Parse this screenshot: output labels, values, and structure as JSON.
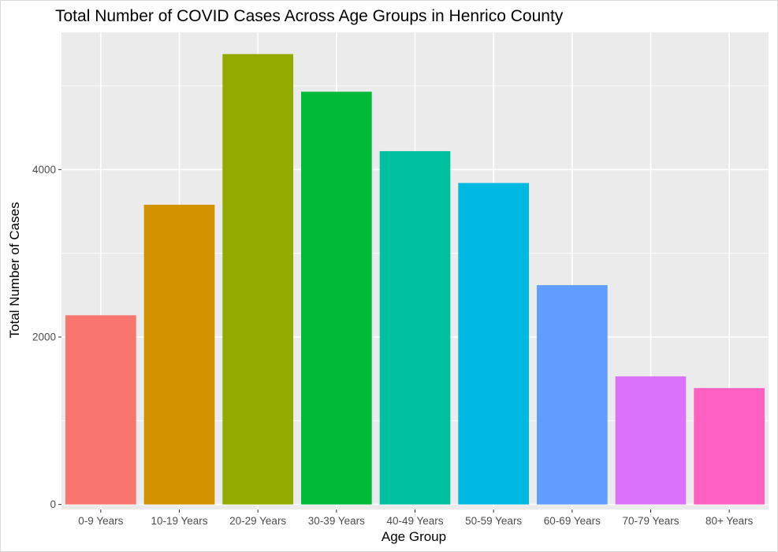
{
  "chart_data": {
    "type": "bar",
    "title": "Total Number of COVID Cases Across Age Groups in Henrico County",
    "xlabel": "Age Group",
    "ylabel": "Total Number of Cases",
    "categories": [
      "0-9 Years",
      "10-19 Years",
      "20-29 Years",
      "30-39 Years",
      "40-49 Years",
      "50-59 Years",
      "60-69 Years",
      "70-79 Years",
      "80+ Years"
    ],
    "values": [
      2260,
      3580,
      5380,
      4930,
      4220,
      3840,
      2620,
      1530,
      1390
    ],
    "colors": [
      "#F8766D",
      "#D39200",
      "#93AA00",
      "#00BA38",
      "#00C19F",
      "#00B9E3",
      "#619CFF",
      "#DB72FB",
      "#FF61C3"
    ],
    "ylim": [
      -60,
      5640
    ],
    "yticks": [
      0,
      2000,
      4000
    ],
    "yticks_labels": [
      "0",
      "2000",
      "4000"
    ],
    "y_minor_gridlines": [
      1000,
      3000,
      5000
    ],
    "grid": true,
    "legend": "none",
    "panel_background": "#EBEBEB",
    "gridline_color": "#FFFFFF"
  }
}
